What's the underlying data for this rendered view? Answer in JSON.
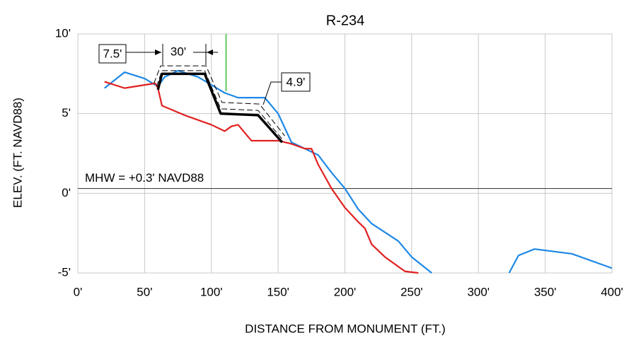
{
  "chart_data": {
    "type": "line",
    "title": "R-234",
    "xlabel": "DISTANCE FROM MONUMENT (FT.)",
    "ylabel": "ELEV. (FT. NAVD88)",
    "xlim": [
      0,
      400
    ],
    "ylim": [
      -5,
      10
    ],
    "xticks": [
      {
        "value": 0,
        "label": "0'"
      },
      {
        "value": 50,
        "label": "50'"
      },
      {
        "value": 100,
        "label": "100'"
      },
      {
        "value": 150,
        "label": "150'"
      },
      {
        "value": 200,
        "label": "200'"
      },
      {
        "value": 250,
        "label": "250'"
      },
      {
        "value": 300,
        "label": "300'"
      },
      {
        "value": 350,
        "label": "350'"
      },
      {
        "value": 400,
        "label": "400'"
      }
    ],
    "yticks": [
      {
        "value": -5,
        "label": "-5'"
      },
      {
        "value": 0,
        "label": "0'"
      },
      {
        "value": 5,
        "label": "5'"
      },
      {
        "value": 10,
        "label": "10'"
      }
    ],
    "grid": true,
    "mhw": {
      "label": "MHW = +0.3' NAVD88",
      "value": 0.3
    },
    "annotations": [
      "7.5'",
      "30'",
      "4.9'"
    ],
    "series": [
      {
        "color": "#1e88e5",
        "width": 2.2,
        "dashed": false,
        "x": [
          20,
          35,
          50,
          60,
          65,
          75,
          90,
          100,
          110,
          120,
          140,
          150,
          160,
          170,
          180,
          190,
          200,
          210,
          220,
          240,
          250,
          265,
          null,
          323,
          330,
          342,
          370,
          400
        ],
        "values": [
          6.6,
          7.6,
          7.2,
          6.7,
          7.3,
          7.7,
          7.3,
          6.8,
          6.3,
          6.0,
          6.0,
          5.0,
          3.2,
          2.8,
          2.4,
          1.3,
          0.3,
          -1.0,
          -1.9,
          -3.0,
          -4.0,
          -5.0,
          null,
          -5.0,
          -3.9,
          -3.5,
          -3.8,
          -4.7
        ]
      },
      {
        "color": "#e02020",
        "width": 2.2,
        "dashed": false,
        "x": [
          20,
          35,
          50,
          58,
          60,
          63,
          80,
          100,
          110,
          115,
          120,
          125,
          130,
          150,
          160,
          170,
          175,
          180,
          190,
          200,
          210,
          215,
          220,
          230,
          245,
          255
        ],
        "values": [
          7.0,
          6.6,
          6.8,
          6.9,
          6.6,
          5.5,
          4.9,
          4.3,
          3.9,
          4.2,
          4.3,
          3.8,
          3.3,
          3.3,
          3.1,
          2.8,
          2.8,
          1.8,
          0.3,
          -0.9,
          -1.8,
          -2.2,
          -3.2,
          -4.0,
          -4.9,
          -5.0
        ]
      },
      {
        "color": "#000000",
        "width": 1,
        "dashed": true,
        "x": [
          57,
          62,
          96,
          108,
          136,
          155
        ],
        "values": [
          6.9,
          8.0,
          8.0,
          5.7,
          5.6,
          3.6
        ]
      },
      {
        "color": "#000000",
        "width": 1,
        "dashed": true,
        "x": [
          59,
          63,
          95,
          107,
          135,
          153
        ],
        "values": [
          6.7,
          7.7,
          7.7,
          5.3,
          5.2,
          3.4
        ]
      },
      {
        "color": "#000000",
        "width": 3.5,
        "dashed": false,
        "x": [
          60,
          63,
          95,
          107,
          135,
          153
        ],
        "values": [
          6.5,
          7.5,
          7.5,
          5.0,
          4.9,
          3.2
        ]
      },
      {
        "color": "#33bb33",
        "width": 1.5,
        "dashed": false,
        "x": [
          111,
          111
        ],
        "values": [
          10,
          6.4
        ]
      }
    ]
  }
}
